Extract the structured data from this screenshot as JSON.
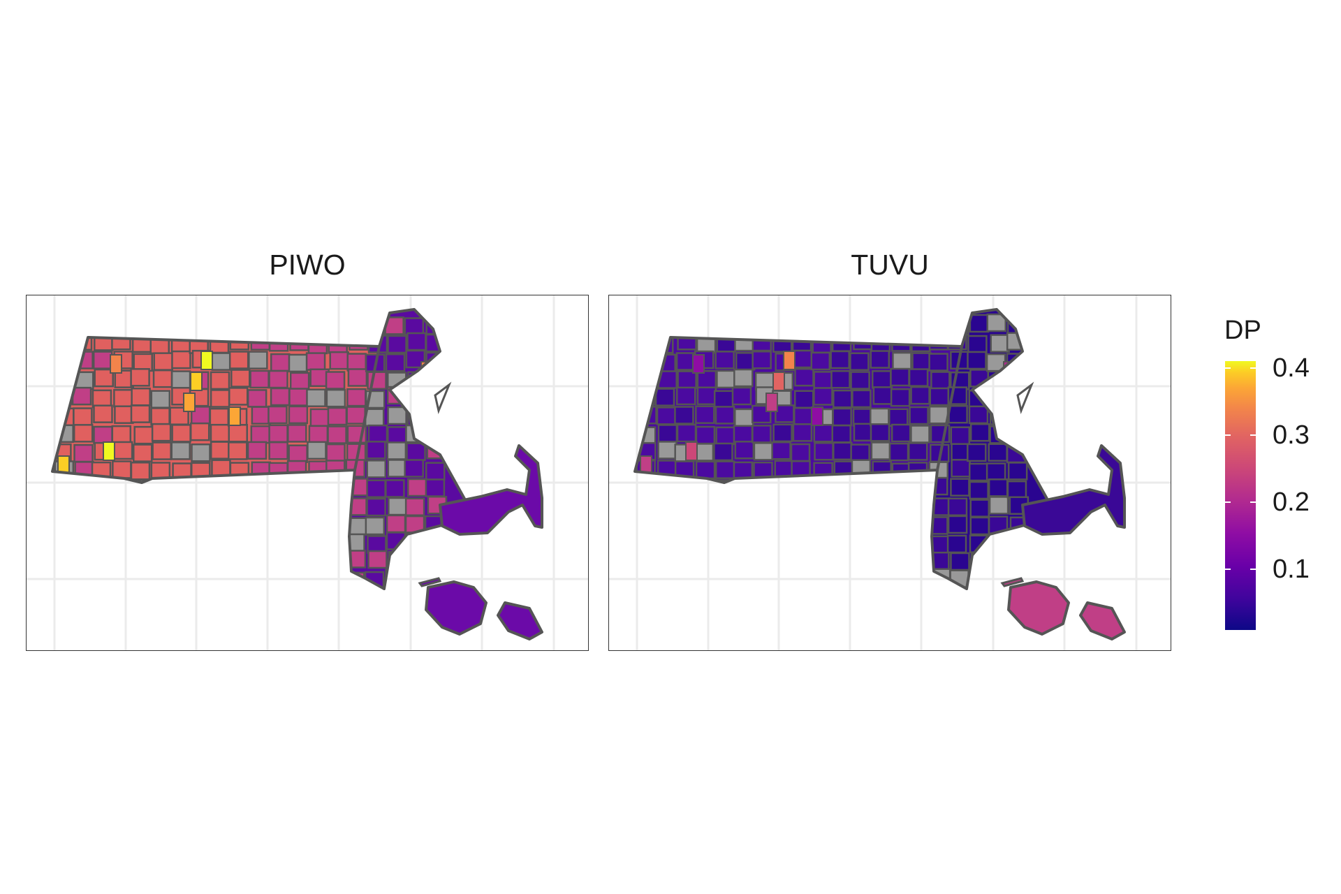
{
  "panels": [
    {
      "title": "PIWO",
      "west": "#e0605f",
      "central": "#c03f86",
      "east": "#5a0aa0",
      "cape": "#6b0aa8",
      "islands": "#6b0aa8",
      "highlights": [
        "#f0f921",
        "#fcce25",
        "#fca636",
        "#f2844b",
        "#f0f921",
        "#fca636",
        "#f2844b",
        "#fcce25"
      ]
    },
    {
      "title": "TUVU",
      "west": "#4b0aa0",
      "central": "#3a0896",
      "east": "#2a0590",
      "cape": "#3a0896",
      "islands": "#c03f86",
      "highlights": [
        "#f2844b",
        "#e16462",
        "#c03f86",
        "#8f0da4",
        "#cc4778",
        "#8f0da4",
        "#b12a90",
        "#c03f86"
      ]
    }
  ],
  "colors": {
    "missing": "#999999",
    "border": "#555555",
    "grid": "#ebebeb"
  },
  "legend": {
    "title": "DP",
    "ticks": [
      {
        "label": "0.4",
        "value": 0.4
      },
      {
        "label": "0.3",
        "value": 0.3
      },
      {
        "label": "0.2",
        "value": 0.2
      },
      {
        "label": "0.1",
        "value": 0.1
      }
    ],
    "range": [
      0.01,
      0.41
    ]
  }
}
